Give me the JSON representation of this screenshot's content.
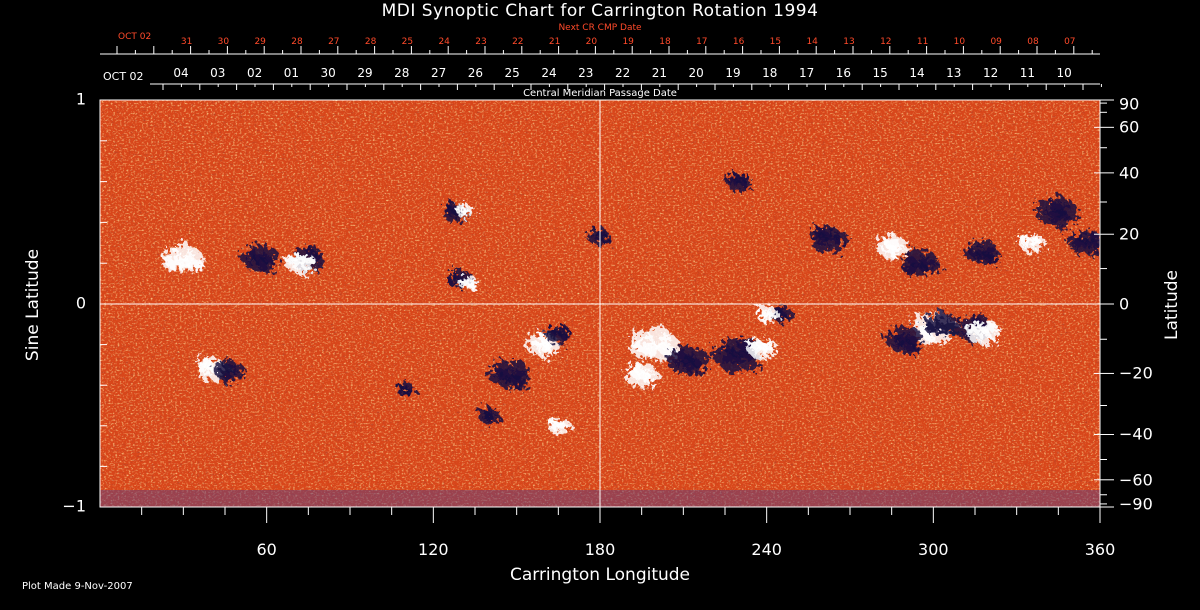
{
  "chart_data": {
    "type": "heatmap",
    "title": "MDI Synoptic Chart for Carrington Rotation 1994",
    "xlabel": "Carrington Longitude",
    "ylabel_left": "Sine Latitude",
    "ylabel_right": "Latitude",
    "xlim": [
      0,
      360
    ],
    "ylim": [
      -1,
      1
    ],
    "x_ticks": [
      60,
      120,
      180,
      240,
      300,
      360
    ],
    "y_ticks_left": [
      "1",
      "0",
      "−1"
    ],
    "y_ticks_right": [
      "90",
      "60",
      "40",
      "20",
      "0",
      "−20",
      "−40",
      "−60",
      "−90"
    ],
    "y_ticks_right_values": [
      90,
      60,
      40,
      20,
      0,
      -20,
      -40,
      -60,
      -90
    ],
    "top_axis_next_cr": {
      "label": "Next CR CMP Date",
      "start_label": "OCT 02",
      "days": [
        "31",
        "30",
        "29",
        "28",
        "27",
        "28",
        "25",
        "24",
        "23",
        "22",
        "21",
        "20",
        "19",
        "18",
        "17",
        "16",
        "15",
        "14",
        "13",
        "12",
        "11",
        "10",
        "09",
        "08",
        "07"
      ]
    },
    "top_axis_cmp": {
      "label": "Central Meridian Passage Date",
      "start_label": "OCT 02",
      "days": [
        "04",
        "03",
        "02",
        "01",
        "30",
        "29",
        "28",
        "27",
        "26",
        "25",
        "24",
        "23",
        "22",
        "21",
        "20",
        "19",
        "18",
        "17",
        "16",
        "15",
        "14",
        "13",
        "12",
        "11",
        "10"
      ]
    },
    "grid": "crosshair at longitude 180 and sine latitude 0",
    "colors": {
      "background": "#d84a16",
      "positive": "#ffffff",
      "negative": "#1a1240",
      "mid": "#ff6a1a"
    },
    "features": [
      {
        "lon": 30,
        "sinlat": 0.22,
        "polarity": "positive",
        "r": 1.0
      },
      {
        "lon": 58,
        "sinlat": 0.22,
        "polarity": "negative",
        "r": 0.9
      },
      {
        "lon": 75,
        "sinlat": 0.22,
        "polarity": "negative",
        "r": 0.8
      },
      {
        "lon": 72,
        "sinlat": 0.2,
        "polarity": "positive",
        "r": 0.7
      },
      {
        "lon": 128,
        "sinlat": 0.45,
        "polarity": "negative",
        "r": 0.6
      },
      {
        "lon": 131,
        "sinlat": 0.46,
        "polarity": "positive",
        "r": 0.4
      },
      {
        "lon": 130,
        "sinlat": 0.12,
        "polarity": "negative",
        "r": 0.6
      },
      {
        "lon": 133,
        "sinlat": 0.1,
        "polarity": "positive",
        "r": 0.4
      },
      {
        "lon": 180,
        "sinlat": 0.33,
        "polarity": "negative",
        "r": 0.5
      },
      {
        "lon": 230,
        "sinlat": 0.6,
        "polarity": "negative",
        "r": 0.6
      },
      {
        "lon": 262,
        "sinlat": 0.32,
        "polarity": "negative",
        "r": 0.9
      },
      {
        "lon": 285,
        "sinlat": 0.28,
        "polarity": "positive",
        "r": 0.8
      },
      {
        "lon": 295,
        "sinlat": 0.2,
        "polarity": "negative",
        "r": 0.9
      },
      {
        "lon": 318,
        "sinlat": 0.25,
        "polarity": "negative",
        "r": 0.8
      },
      {
        "lon": 345,
        "sinlat": 0.45,
        "polarity": "negative",
        "r": 1.0
      },
      {
        "lon": 355,
        "sinlat": 0.3,
        "polarity": "negative",
        "r": 0.8
      },
      {
        "lon": 335,
        "sinlat": 0.3,
        "polarity": "positive",
        "r": 0.6
      },
      {
        "lon": 245,
        "sinlat": -0.05,
        "polarity": "negative",
        "r": 0.5
      },
      {
        "lon": 240,
        "sinlat": -0.05,
        "polarity": "positive",
        "r": 0.5
      },
      {
        "lon": 200,
        "sinlat": -0.2,
        "polarity": "positive",
        "r": 1.2
      },
      {
        "lon": 212,
        "sinlat": -0.28,
        "polarity": "negative",
        "r": 1.0
      },
      {
        "lon": 230,
        "sinlat": -0.25,
        "polarity": "negative",
        "r": 1.2
      },
      {
        "lon": 238,
        "sinlat": -0.22,
        "polarity": "positive",
        "r": 0.7
      },
      {
        "lon": 195,
        "sinlat": -0.35,
        "polarity": "positive",
        "r": 0.8
      },
      {
        "lon": 300,
        "sinlat": -0.12,
        "polarity": "positive",
        "r": 1.1
      },
      {
        "lon": 303,
        "sinlat": -0.1,
        "polarity": "negative",
        "r": 0.8
      },
      {
        "lon": 290,
        "sinlat": -0.18,
        "polarity": "negative",
        "r": 0.9
      },
      {
        "lon": 315,
        "sinlat": -0.12,
        "polarity": "negative",
        "r": 0.9
      },
      {
        "lon": 318,
        "sinlat": -0.14,
        "polarity": "positive",
        "r": 0.8
      },
      {
        "lon": 40,
        "sinlat": -0.32,
        "polarity": "positive",
        "r": 0.8
      },
      {
        "lon": 46,
        "sinlat": -0.33,
        "polarity": "negative",
        "r": 0.7
      },
      {
        "lon": 110,
        "sinlat": -0.42,
        "polarity": "negative",
        "r": 0.4
      },
      {
        "lon": 148,
        "sinlat": -0.35,
        "polarity": "negative",
        "r": 1.0
      },
      {
        "lon": 160,
        "sinlat": -0.2,
        "polarity": "positive",
        "r": 0.8
      },
      {
        "lon": 165,
        "sinlat": -0.15,
        "polarity": "negative",
        "r": 0.6
      },
      {
        "lon": 165,
        "sinlat": -0.6,
        "polarity": "positive",
        "r": 0.5
      },
      {
        "lon": 140,
        "sinlat": -0.55,
        "polarity": "negative",
        "r": 0.5
      }
    ]
  },
  "footer": {
    "plot_made": "Plot Made  9-Nov-2007"
  }
}
